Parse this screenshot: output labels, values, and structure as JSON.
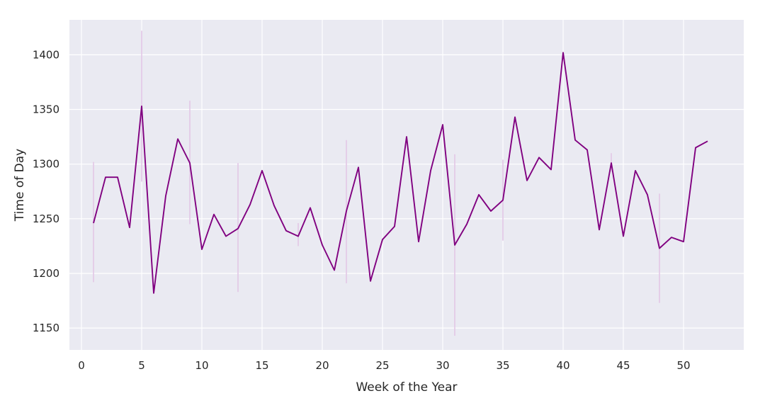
{
  "chart_data": {
    "type": "line",
    "title": "",
    "xlabel": "Week of the Year",
    "ylabel": "Time of Day",
    "xlim": [
      -1,
      55
    ],
    "ylim": [
      1130,
      1432
    ],
    "xticks": [
      0,
      5,
      10,
      15,
      20,
      25,
      30,
      35,
      40,
      45,
      50
    ],
    "yticks": [
      1150,
      1200,
      1250,
      1300,
      1350,
      1400
    ],
    "grid": true,
    "legend": "none",
    "colors": {
      "line": "#800080",
      "error_bars": "#e2c6e6",
      "background": "#eaeaf2",
      "grid": "#ffffff",
      "text": "#262626"
    },
    "x": [
      1,
      2,
      3,
      4,
      5,
      6,
      7,
      8,
      9,
      10,
      11,
      12,
      13,
      14,
      15,
      16,
      17,
      18,
      19,
      20,
      21,
      22,
      23,
      24,
      25,
      26,
      27,
      28,
      29,
      30,
      31,
      32,
      33,
      34,
      35,
      36,
      37,
      38,
      39,
      40,
      41,
      42,
      43,
      44,
      45,
      46,
      47,
      48,
      49,
      50,
      51,
      52
    ],
    "y": [
      1246,
      1288,
      1288,
      1242,
      1353,
      1182,
      1271,
      1323,
      1301,
      1222,
      1254,
      1234,
      1241,
      1263,
      1294,
      1262,
      1239,
      1234,
      1260,
      1226,
      1203,
      1257,
      1297,
      1193,
      1231,
      1243,
      1325,
      1229,
      1294,
      1336,
      1226,
      1245,
      1272,
      1257,
      1267,
      1343,
      1285,
      1306,
      1295,
      1402,
      1322,
      1313,
      1240,
      1301,
      1234,
      1294,
      1272,
      1223,
      1233,
      1229,
      1315,
      1321
    ],
    "error_bars": [
      {
        "x": 1,
        "low": 1192,
        "high": 1302
      },
      {
        "x": 5,
        "low": 1284,
        "high": 1422
      },
      {
        "x": 9,
        "low": 1245,
        "high": 1358
      },
      {
        "x": 13,
        "low": 1183,
        "high": 1301
      },
      {
        "x": 18,
        "low": 1225,
        "high": 1246
      },
      {
        "x": 22,
        "low": 1191,
        "high": 1322
      },
      {
        "x": 31,
        "low": 1143,
        "high": 1309
      },
      {
        "x": 35,
        "low": 1230,
        "high": 1304
      },
      {
        "x": 44,
        "low": 1293,
        "high": 1310
      },
      {
        "x": 48,
        "low": 1173,
        "high": 1273
      }
    ]
  }
}
